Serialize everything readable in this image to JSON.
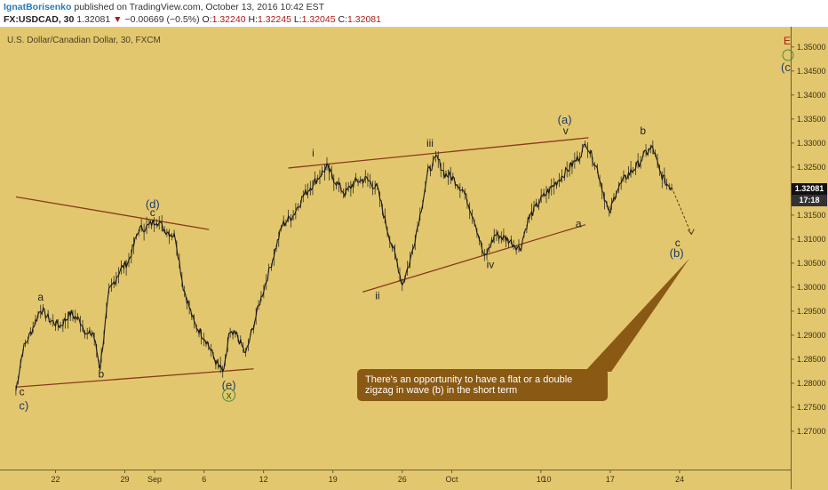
{
  "header": {
    "author": "IgnatBorisenko",
    "published": "published on TradingView.com, October 13, 2016 10:42 EST",
    "symbol": "FX:USDCAD, 30",
    "last": "1.32081",
    "change_arrow": "▼",
    "change": "−0.00669 (−0.5%)",
    "o_label": "O:",
    "o_value": "1.32240",
    "h_label": "H:",
    "h_value": "1.32245",
    "l_label": "L:",
    "l_value": "1.32045",
    "c_label": "C:",
    "c_value": "1.32081"
  },
  "chart_title": "U.S. Dollar/Canadian Dollar, 30, FXCM",
  "annotation": "There's an opportunity to have a flat or a double zigzag in wave (b) in the short term",
  "current_price_tag": "1.32081",
  "countdown_tag": "17:18",
  "colors": {
    "background": "#e2c76e",
    "trendline": "#8b3a1a",
    "candles": "#1a1a1a",
    "annotation_bg": "#8a5a14",
    "wave_label_blue": "#1f3a6e"
  },
  "chart_data": {
    "type": "line",
    "ylim": [
      1.265,
      1.352
    ],
    "y_ticks": [
      "1.35000",
      "1.34500",
      "1.34000",
      "1.33500",
      "1.33000",
      "1.32500",
      "1.32000",
      "1.31500",
      "1.31000",
      "1.30500",
      "1.30000",
      "1.29500",
      "1.29000",
      "1.28500",
      "1.28000",
      "1.27500",
      "1.27000"
    ],
    "x_ticks": [
      "22",
      "29",
      "Sep",
      "6",
      "12",
      "19",
      "26",
      "Oct",
      "10",
      "17",
      "24"
    ],
    "x_tick_days": [
      -10,
      -3,
      0,
      5,
      11,
      18,
      25,
      30,
      39,
      46,
      53
    ],
    "extra_x_tick": "10",
    "price_path": [
      [
        -14,
        1.2785
      ],
      [
        -13.3,
        1.287
      ],
      [
        -12.4,
        1.291
      ],
      [
        -11.5,
        1.2955
      ],
      [
        -10.5,
        1.293
      ],
      [
        -9.5,
        1.292
      ],
      [
        -8.5,
        1.2945
      ],
      [
        -7.5,
        1.293
      ],
      [
        -6.8,
        1.29
      ],
      [
        -6.2,
        1.2905
      ],
      [
        -5.5,
        1.2832
      ],
      [
        -4.6,
        1.299
      ],
      [
        -3.5,
        1.3035
      ],
      [
        -2.6,
        1.3055
      ],
      [
        -1.6,
        1.312
      ],
      [
        -0.8,
        1.3125
      ],
      [
        0.2,
        1.314
      ],
      [
        1.0,
        1.312
      ],
      [
        2.1,
        1.3105
      ],
      [
        2.9,
        1.3
      ],
      [
        4.0,
        1.2925
      ],
      [
        5.2,
        1.289
      ],
      [
        6.3,
        1.284
      ],
      [
        7.0,
        1.2822
      ],
      [
        7.5,
        1.29
      ],
      [
        8.3,
        1.29
      ],
      [
        9.2,
        1.286
      ],
      [
        10.5,
        1.296
      ],
      [
        11.8,
        1.305
      ],
      [
        12.9,
        1.313
      ],
      [
        14.0,
        1.315
      ],
      [
        15.0,
        1.319
      ],
      [
        16.2,
        1.322
      ],
      [
        17.4,
        1.325
      ],
      [
        18.1,
        1.3225
      ],
      [
        19.2,
        1.3195
      ],
      [
        20.3,
        1.322
      ],
      [
        21.4,
        1.3225
      ],
      [
        22.5,
        1.3205
      ],
      [
        23.5,
        1.312
      ],
      [
        24.5,
        1.305
      ],
      [
        25.0,
        1.3005
      ],
      [
        25.8,
        1.3055
      ],
      [
        26.8,
        1.315
      ],
      [
        27.6,
        1.324
      ],
      [
        28.5,
        1.327
      ],
      [
        29.3,
        1.3235
      ],
      [
        30.0,
        1.323
      ],
      [
        31.2,
        1.32
      ],
      [
        32.3,
        1.314
      ],
      [
        33.3,
        1.306
      ],
      [
        34.4,
        1.311
      ],
      [
        35.6,
        1.31
      ],
      [
        36.9,
        1.308
      ],
      [
        37.7,
        1.314
      ],
      [
        38.9,
        1.318
      ],
      [
        40.2,
        1.321
      ],
      [
        41.5,
        1.324
      ],
      [
        42.8,
        1.327
      ],
      [
        43.6,
        1.33
      ],
      [
        44.7,
        1.3245
      ],
      [
        45.9,
        1.315
      ],
      [
        46.6,
        1.32
      ],
      [
        47.6,
        1.323
      ],
      [
        48.8,
        1.3255
      ],
      [
        49.6,
        1.328
      ],
      [
        50.3,
        1.329
      ],
      [
        51.0,
        1.324
      ],
      [
        51.7,
        1.3215
      ],
      [
        52.2,
        1.3208
      ]
    ],
    "trendlines": [
      {
        "x0": -14,
        "y0": 1.3188,
        "x1": 5.5,
        "y1": 1.312
      },
      {
        "x0": -14,
        "y0": 1.2792,
        "x1": 10.0,
        "y1": 1.283
      },
      {
        "x0": 13.5,
        "y0": 1.3248,
        "x1": 43.8,
        "y1": 1.3311
      },
      {
        "x0": 21.0,
        "y0": 1.299,
        "x1": 43.5,
        "y1": 1.313
      }
    ],
    "projection": {
      "x0": 52.2,
      "y0": 1.3208,
      "x1": 54.2,
      "y1": 1.311
    },
    "callout_tip": {
      "x": 54.0,
      "y": 1.306
    },
    "wave_labels": [
      {
        "text": "c",
        "x": -13.4,
        "y": 1.2775,
        "style": "wave"
      },
      {
        "text": "c)",
        "x": -13.2,
        "y": 1.2745,
        "style": "wave-b"
      },
      {
        "text": "a",
        "x": -11.5,
        "y": 1.2972,
        "style": "wave"
      },
      {
        "text": "b",
        "x": -5.4,
        "y": 1.2812,
        "style": "wave"
      },
      {
        "text": "(d)",
        "x": -0.2,
        "y": 1.3165,
        "style": "wave-b"
      },
      {
        "text": "c",
        "x": -0.2,
        "y": 1.3148,
        "style": "wave"
      },
      {
        "text": "(e)",
        "x": 7.5,
        "y": 1.2788,
        "style": "wave-b"
      },
      {
        "text": "x",
        "x": 7.5,
        "y": 1.2768,
        "style": "wave-x"
      },
      {
        "text": "i",
        "x": 16.0,
        "y": 1.3272,
        "style": "wave"
      },
      {
        "text": "ii",
        "x": 22.5,
        "y": 1.2975,
        "style": "wave"
      },
      {
        "text": "iii",
        "x": 27.8,
        "y": 1.3292,
        "style": "wave"
      },
      {
        "text": "iv",
        "x": 33.9,
        "y": 1.304,
        "style": "wave"
      },
      {
        "text": "(a)",
        "x": 41.4,
        "y": 1.334,
        "style": "wave-b"
      },
      {
        "text": "v",
        "x": 41.5,
        "y": 1.3318,
        "style": "wave"
      },
      {
        "text": "a",
        "x": 42.8,
        "y": 1.3125,
        "style": "wave"
      },
      {
        "text": "b",
        "x": 49.3,
        "y": 1.3318,
        "style": "wave"
      },
      {
        "text": "c",
        "x": 52.8,
        "y": 1.3085,
        "style": "wave"
      },
      {
        "text": "(b)",
        "x": 52.7,
        "y": 1.3063,
        "style": "wave-b"
      }
    ]
  }
}
